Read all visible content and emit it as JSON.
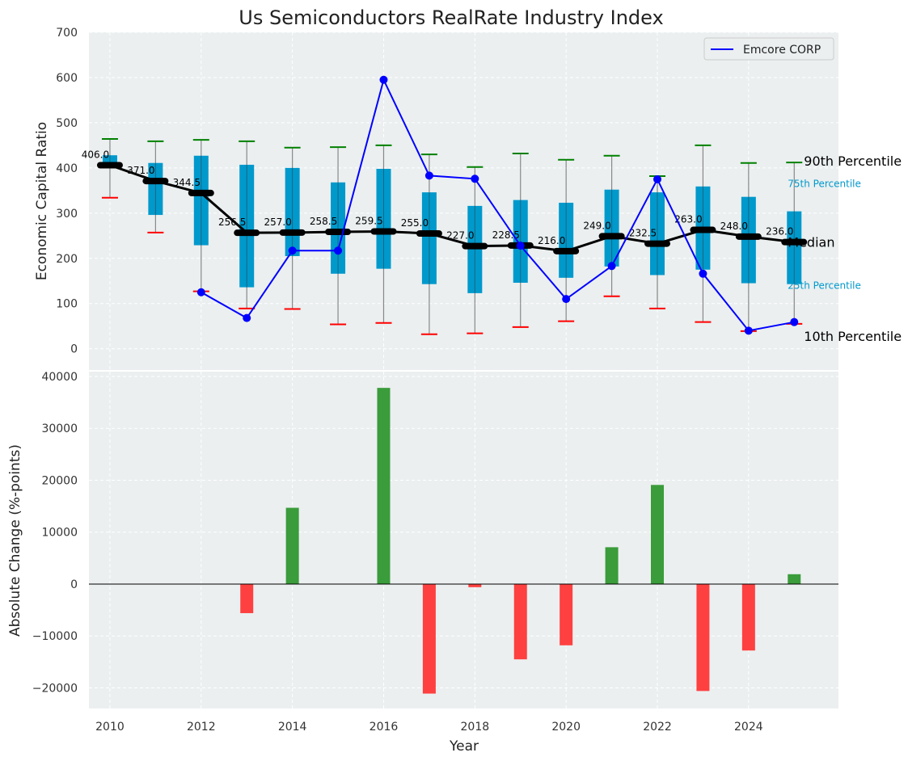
{
  "chart_data": [
    {
      "type": "box",
      "title": "Us Semiconductors RealRate Industry Index",
      "ylabel": "Economic Capital Ratio",
      "ylim": [
        -47,
        700
      ],
      "yticks": [
        0,
        100,
        200,
        300,
        400,
        500,
        600,
        700
      ],
      "grid": true,
      "years": [
        2010,
        2011,
        2012,
        2013,
        2014,
        2015,
        2016,
        2017,
        2018,
        2019,
        2020,
        2021,
        2022,
        2023,
        2024,
        2025
      ],
      "p10": [
        334,
        257,
        127,
        89,
        88,
        54,
        57,
        32,
        34,
        48,
        61,
        116,
        89,
        59,
        39,
        55
      ],
      "q25": [
        400,
        296,
        229,
        136,
        205,
        166,
        177,
        143,
        123,
        146,
        157,
        182,
        163,
        175,
        145,
        143
      ],
      "median": [
        406.0,
        371.0,
        344.5,
        256.5,
        257.0,
        258.5,
        259.5,
        255.0,
        227.0,
        228.5,
        216.0,
        249.0,
        232.5,
        263.0,
        248.0,
        236.0
      ],
      "median_labels": [
        "406.0",
        "371.0",
        "344.5",
        "256.5",
        "257.0",
        "258.5",
        "259.5",
        "255.0",
        "227.0",
        "228.5",
        "216.0",
        "249.0",
        "232.5",
        "263.0",
        "248.0",
        "236.0"
      ],
      "q75": [
        428,
        411,
        427,
        407,
        400,
        368,
        398,
        346,
        316,
        329,
        323,
        352,
        346,
        359,
        336,
        304
      ],
      "p90": [
        464,
        459,
        462,
        459,
        445,
        446,
        450,
        430,
        402,
        432,
        418,
        427,
        382,
        450,
        411,
        412
      ],
      "series": [
        {
          "name": "Emcore CORP",
          "x": [
            2012,
            2013,
            2014,
            2015,
            2016,
            2017,
            2018,
            2019,
            2020,
            2021,
            2022,
            2023,
            2024,
            2025
          ],
          "values": [
            125,
            68,
            217,
            217,
            595,
            383,
            376,
            228,
            110,
            183,
            375,
            166,
            40,
            59
          ],
          "color": "#0000ff"
        }
      ],
      "legend": {
        "position": "top-right",
        "entries": [
          "Emcore CORP"
        ]
      },
      "annotations": {
        "p90": "90th Percentile",
        "p75": "75th Percentile",
        "median": "Median",
        "p25": "25th Percentile",
        "p10": "10th Percentile"
      },
      "colors": {
        "box": "#0099cc",
        "p90": "#008000",
        "p10": "#ff0000",
        "median": "#000000"
      }
    },
    {
      "type": "bar",
      "xlabel": "Year",
      "ylabel": "Absolute Change (%-points)",
      "ylim": [
        -23970,
        40934
      ],
      "yticks": [
        -20000,
        -10000,
        0,
        10000,
        20000,
        30000,
        40000
      ],
      "ytick_labels": [
        "−20000",
        "−10000",
        "0",
        "10000",
        "20000",
        "30000",
        "40000"
      ],
      "xlim": [
        2009.54,
        2025.97
      ],
      "xticks": [
        2010,
        2012,
        2014,
        2016,
        2018,
        2020,
        2022,
        2024
      ],
      "x": [
        2013,
        2014,
        2016,
        2017,
        2018,
        2019,
        2020,
        2021,
        2022,
        2023,
        2024,
        2025
      ],
      "values": [
        -5600,
        14700,
        37800,
        -21100,
        -600,
        -14500,
        -11800,
        7100,
        19100,
        -20600,
        -12800,
        1900
      ],
      "colors": {
        "positive": "#3a9c3a",
        "negative": "#ff4040"
      }
    }
  ]
}
